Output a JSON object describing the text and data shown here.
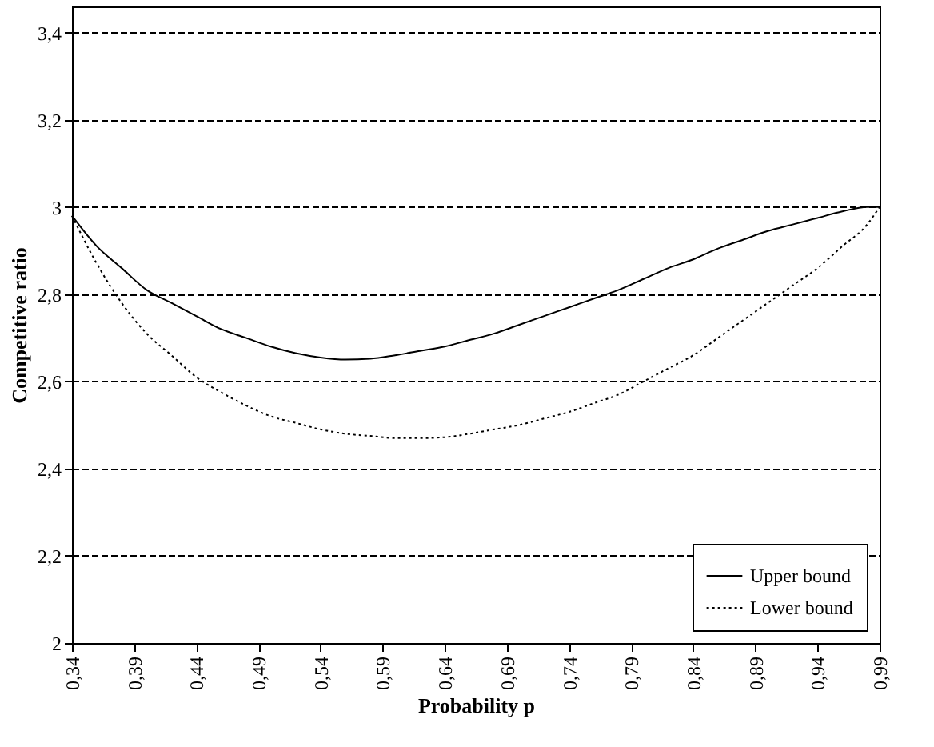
{
  "chart_data": {
    "type": "line",
    "xlabel": "Probability p",
    "ylabel": "Competitive ratio",
    "x": [
      0.34,
      0.36,
      0.38,
      0.4,
      0.42,
      0.44,
      0.46,
      0.48,
      0.5,
      0.52,
      0.54,
      0.56,
      0.58,
      0.6,
      0.62,
      0.64,
      0.66,
      0.68,
      0.7,
      0.72,
      0.74,
      0.76,
      0.78,
      0.8,
      0.82,
      0.84,
      0.86,
      0.88,
      0.9,
      0.92,
      0.94,
      0.96,
      0.98,
      0.99
    ],
    "series": [
      {
        "name": "Upper bound",
        "color": "#000000",
        "line_style": "solid",
        "values": [
          2.98,
          2.91,
          2.86,
          2.81,
          2.78,
          2.75,
          2.72,
          2.7,
          2.68,
          2.665,
          2.655,
          2.65,
          2.652,
          2.66,
          2.67,
          2.68,
          2.695,
          2.71,
          2.73,
          2.75,
          2.77,
          2.79,
          2.81,
          2.835,
          2.86,
          2.88,
          2.905,
          2.925,
          2.945,
          2.96,
          2.975,
          2.99,
          3.0,
          3.0
        ]
      },
      {
        "name": "Lower bound",
        "color": "#000000",
        "line_style": "dotted",
        "values": [
          2.98,
          2.87,
          2.78,
          2.71,
          2.66,
          2.61,
          2.575,
          2.545,
          2.52,
          2.505,
          2.49,
          2.48,
          2.475,
          2.47,
          2.47,
          2.472,
          2.48,
          2.49,
          2.5,
          2.515,
          2.53,
          2.55,
          2.57,
          2.6,
          2.63,
          2.66,
          2.7,
          2.74,
          2.78,
          2.82,
          2.86,
          2.91,
          2.96,
          3.0
        ]
      }
    ],
    "xlim": [
      0.34,
      0.99
    ],
    "xticks": [
      {
        "value": 0.34,
        "label": "0,34"
      },
      {
        "value": 0.39,
        "label": "0,39"
      },
      {
        "value": 0.44,
        "label": "0,44"
      },
      {
        "value": 0.49,
        "label": "0,49"
      },
      {
        "value": 0.54,
        "label": "0,54"
      },
      {
        "value": 0.59,
        "label": "0,59"
      },
      {
        "value": 0.64,
        "label": "0,64"
      },
      {
        "value": 0.69,
        "label": "0,69"
      },
      {
        "value": 0.74,
        "label": "0,74"
      },
      {
        "value": 0.79,
        "label": "0,79"
      },
      {
        "value": 0.84,
        "label": "0,84"
      },
      {
        "value": 0.89,
        "label": "0,89"
      },
      {
        "value": 0.94,
        "label": "0,94"
      },
      {
        "value": 0.99,
        "label": "0,99"
      }
    ],
    "ylim": [
      2,
      3.46
    ],
    "yticks": [
      {
        "value": 2,
        "label": "2"
      },
      {
        "value": 2.2,
        "label": "2,2"
      },
      {
        "value": 2.4,
        "label": "2,4"
      },
      {
        "value": 2.6,
        "label": "2,6"
      },
      {
        "value": 2.8,
        "label": "2,8"
      },
      {
        "value": 3,
        "label": "3"
      },
      {
        "value": 3.2,
        "label": "3,2"
      },
      {
        "value": 3.4,
        "label": "3,4"
      }
    ],
    "grid": "y",
    "legend": "bottom right"
  }
}
